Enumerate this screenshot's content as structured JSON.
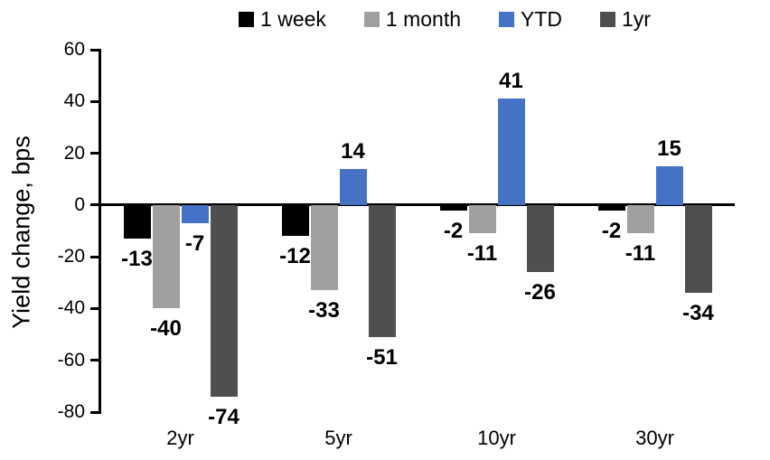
{
  "chart_data": {
    "type": "bar",
    "title": "",
    "ylabel": "Yield change, bps",
    "xlabel": "",
    "categories": [
      "2yr",
      "5yr",
      "10yr",
      "30yr"
    ],
    "series": [
      {
        "name": "1 week",
        "color": "#000000",
        "values": [
          -13,
          -12,
          -2,
          -2
        ]
      },
      {
        "name": "1 month",
        "color": "#A0A0A0",
        "values": [
          -40,
          -33,
          -11,
          -11
        ]
      },
      {
        "name": "YTD",
        "color": "#4472C4",
        "values": [
          -7,
          14,
          41,
          15
        ]
      },
      {
        "name": "1yr",
        "color": "#4F4F4F",
        "values": [
          -74,
          -51,
          -26,
          -34
        ]
      }
    ],
    "ylim": [
      -80,
      60
    ],
    "yticks": [
      60,
      40,
      20,
      0,
      -20,
      -40,
      -60,
      -80
    ],
    "grid": false,
    "legend_position": "top",
    "value_labels": true,
    "axis_color": "#000000"
  }
}
